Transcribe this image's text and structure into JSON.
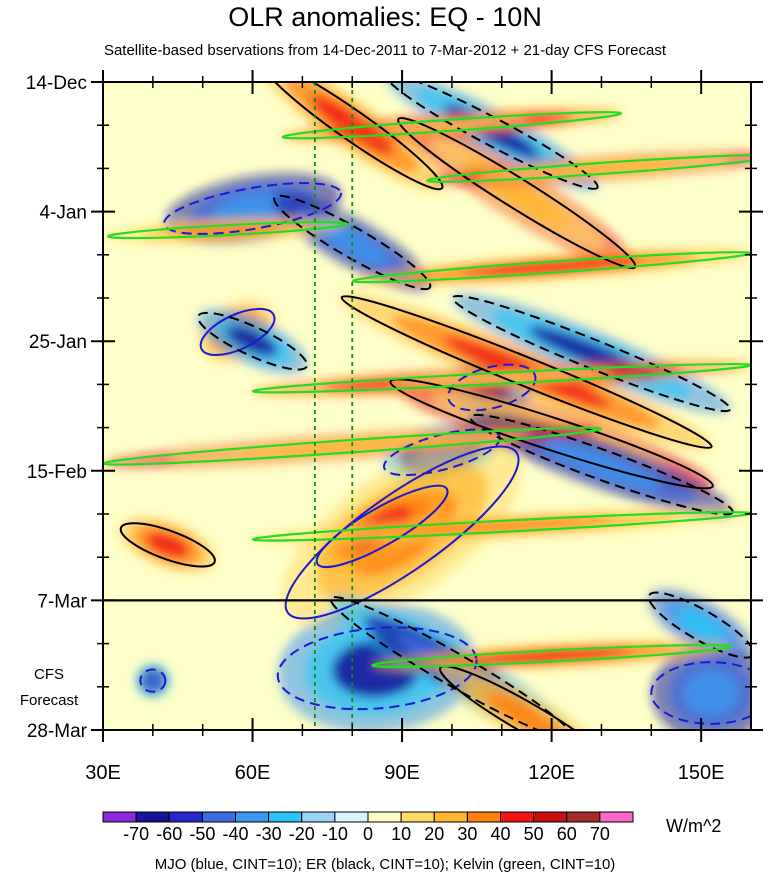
{
  "chart_data": {
    "type": "heatmap",
    "title": "OLR anomalies: EQ - 10N",
    "subtitle": "Satellite-based bservations from 14-Dec-2011 to 7-Mar-2012 + 21-day CFS Forecast",
    "x_axis": {
      "label": "",
      "range": [
        30,
        160
      ],
      "ticks": [
        {
          "value": 30,
          "label": "30E"
        },
        {
          "value": 60,
          "label": "60E"
        },
        {
          "value": 90,
          "label": "90E"
        },
        {
          "value": 120,
          "label": "120E"
        },
        {
          "value": 150,
          "label": "150E"
        }
      ]
    },
    "y_axis": {
      "label": "",
      "range_days": [
        0,
        105
      ],
      "ticks": [
        {
          "day": 0,
          "label": "14-Dec"
        },
        {
          "day": 21,
          "label": "4-Jan"
        },
        {
          "day": 42,
          "label": "25-Jan"
        },
        {
          "day": 63,
          "label": "15-Feb"
        },
        {
          "day": 84,
          "label": "7-Mar"
        },
        {
          "day": 105,
          "label": "28-Mar"
        }
      ]
    },
    "observation_end_day": 84,
    "forecast_label": [
      "CFS",
      "Forecast"
    ],
    "reference_longitudes": [
      72.5,
      80
    ],
    "colorbar": {
      "units": "W/m^2",
      "levels": [
        -70,
        -60,
        -50,
        -40,
        -30,
        -20,
        -10,
        0,
        10,
        20,
        30,
        40,
        50,
        60,
        70
      ],
      "labels": [
        "-70",
        "-60",
        "-50",
        "-40",
        "-30",
        "-20",
        "-10",
        "0",
        "10",
        "20",
        "30",
        "40",
        "50",
        "60",
        "70"
      ],
      "colors": [
        "#8a2be2",
        "#16129a",
        "#2626cc",
        "#3d6ae0",
        "#3d96f0",
        "#29c4f4",
        "#9bd2f6",
        "#d7f4fc",
        "#fefec8",
        "#fed966",
        "#ffb62e",
        "#ff7f10",
        "#f01414",
        "#c41010",
        "#a52a2a",
        "#ff66cc"
      ]
    },
    "features": [
      {
        "type": "mjo",
        "name": "MJO (blue, CINT=10)",
        "color": "#1a1ad2",
        "sign": -1,
        "lon": 60,
        "day": 20.5,
        "rx": 18,
        "ry": 3.3,
        "angle": -10
      },
      {
        "type": "mjo",
        "name": "MJO",
        "color": "#1a1ad2",
        "sign": 1,
        "lon": 57,
        "day": 40.5,
        "rx": 8,
        "ry": 2.8,
        "angle": -25
      },
      {
        "type": "mjo",
        "name": "MJO",
        "color": "#1a1ad2",
        "sign": -1,
        "lon": 108,
        "day": 49.5,
        "rx": 9,
        "ry": 3.3,
        "angle": -15
      },
      {
        "type": "mjo",
        "name": "MJO",
        "color": "#1a1ad2",
        "sign": -1,
        "lon": 98,
        "day": 60,
        "rx": 12,
        "ry": 2.8,
        "angle": -15
      },
      {
        "type": "mjo",
        "name": "MJO",
        "color": "#1a1ad2",
        "sign": 1,
        "lon": 90,
        "day": 73,
        "rx": 28,
        "ry": 6.2,
        "angle": -35
      },
      {
        "type": "mjo",
        "name": "MJO",
        "color": "#1a1ad2",
        "sign": 1,
        "lon": 86,
        "day": 72,
        "rx": 15,
        "ry": 3,
        "angle": -30
      },
      {
        "type": "mjo",
        "name": "MJO",
        "color": "#1a1ad2",
        "sign": -1,
        "lon": 85,
        "day": 95,
        "rx": 20,
        "ry": 6.5,
        "angle": -5
      },
      {
        "type": "mjo",
        "name": "MJO",
        "color": "#1a1ad2",
        "sign": -1,
        "lon": 40,
        "day": 97,
        "rx": 2.5,
        "ry": 1.8,
        "angle": 0
      },
      {
        "type": "mjo",
        "name": "MJO",
        "color": "#1a1ad2",
        "sign": -1,
        "lon": 152,
        "day": 99,
        "rx": 12,
        "ry": 5,
        "angle": 0
      },
      {
        "type": "er",
        "name": "ER (black, CINT=10)",
        "color": "#000000",
        "sign": 1,
        "lon": 80,
        "day": 7,
        "rx": 22,
        "ry": 2.4,
        "angle": 35
      },
      {
        "type": "er",
        "name": "ER",
        "color": "#000000",
        "sign": -1,
        "lon": 108,
        "day": 8,
        "rx": 24,
        "ry": 2.2,
        "angle": 28
      },
      {
        "type": "er",
        "name": "ER",
        "color": "#000000",
        "sign": 1,
        "lon": 113,
        "day": 18,
        "rx": 28,
        "ry": 2.4,
        "angle": 32
      },
      {
        "type": "er",
        "name": "ER",
        "color": "#000000",
        "sign": -1,
        "lon": 80,
        "day": 26,
        "rx": 18,
        "ry": 2.4,
        "angle": 30
      },
      {
        "type": "er",
        "name": "ER",
        "color": "#000000",
        "sign": 1,
        "lon": 115,
        "day": 47,
        "rx": 40,
        "ry": 2.3,
        "angle": 22
      },
      {
        "type": "er",
        "name": "ER",
        "color": "#000000",
        "sign": -1,
        "lon": 128,
        "day": 44,
        "rx": 30,
        "ry": 2.3,
        "angle": 22
      },
      {
        "type": "er",
        "name": "ER",
        "color": "#000000",
        "sign": 1,
        "lon": 120,
        "day": 57,
        "rx": 34,
        "ry": 2.6,
        "angle": 18
      },
      {
        "type": "er",
        "name": "ER",
        "color": "#000000",
        "sign": -1,
        "lon": 130,
        "day": 62,
        "rx": 28,
        "ry": 2.4,
        "angle": 20
      },
      {
        "type": "er",
        "name": "ER",
        "color": "#000000",
        "sign": 1,
        "lon": 43,
        "day": 75,
        "rx": 10,
        "ry": 2.3,
        "angle": 20
      },
      {
        "type": "er",
        "name": "ER",
        "color": "#000000",
        "sign": -1,
        "lon": 60,
        "day": 42,
        "rx": 12,
        "ry": 2.3,
        "angle": 25
      },
      {
        "type": "er",
        "name": "ER",
        "color": "#000000",
        "sign": -1,
        "lon": 100,
        "day": 95,
        "rx": 28,
        "ry": 2.6,
        "angle": 30
      },
      {
        "type": "er",
        "name": "ER",
        "color": "#000000",
        "sign": 1,
        "lon": 115,
        "day": 103,
        "rx": 20,
        "ry": 2.4,
        "angle": 30
      },
      {
        "type": "er",
        "name": "ER",
        "color": "#000000",
        "sign": -1,
        "lon": 150,
        "day": 88,
        "rx": 12,
        "ry": 2.4,
        "angle": 30
      },
      {
        "type": "kelvin",
        "name": "Kelvin (green, CINT=10)",
        "color": "#22dd22",
        "sign": 1,
        "lon": 100,
        "day": 7,
        "rx": 34,
        "ry": 0.9,
        "angle": -4
      },
      {
        "type": "kelvin",
        "name": "Kelvin",
        "color": "#22dd22",
        "sign": 1,
        "lon": 130,
        "day": 14,
        "rx": 35,
        "ry": 0.9,
        "angle": -4
      },
      {
        "type": "kelvin",
        "name": "Kelvin",
        "color": "#22dd22",
        "sign": 1,
        "lon": 55,
        "day": 24,
        "rx": 24,
        "ry": 0.8,
        "angle": -3
      },
      {
        "type": "kelvin",
        "name": "Kelvin",
        "color": "#22dd22",
        "sign": 1,
        "lon": 120,
        "day": 30,
        "rx": 40,
        "ry": 0.9,
        "angle": -4
      },
      {
        "type": "kelvin",
        "name": "Kelvin",
        "color": "#22dd22",
        "sign": 1,
        "lon": 110,
        "day": 48,
        "rx": 50,
        "ry": 0.9,
        "angle": -3
      },
      {
        "type": "kelvin",
        "name": "Kelvin",
        "color": "#22dd22",
        "sign": 1,
        "lon": 80,
        "day": 59,
        "rx": 50,
        "ry": 1.0,
        "angle": -4
      },
      {
        "type": "kelvin",
        "name": "Kelvin",
        "color": "#22dd22",
        "sign": 1,
        "lon": 110,
        "day": 72,
        "rx": 50,
        "ry": 0.9,
        "angle": -3
      },
      {
        "type": "kelvin",
        "name": "Kelvin",
        "color": "#22dd22",
        "sign": 1,
        "lon": 120,
        "day": 93,
        "rx": 36,
        "ry": 0.9,
        "angle": -3
      }
    ],
    "legend_text": "MJO (blue, CINT=10); ER (black, CINT=10); Kelvin (green, CINT=10)"
  }
}
